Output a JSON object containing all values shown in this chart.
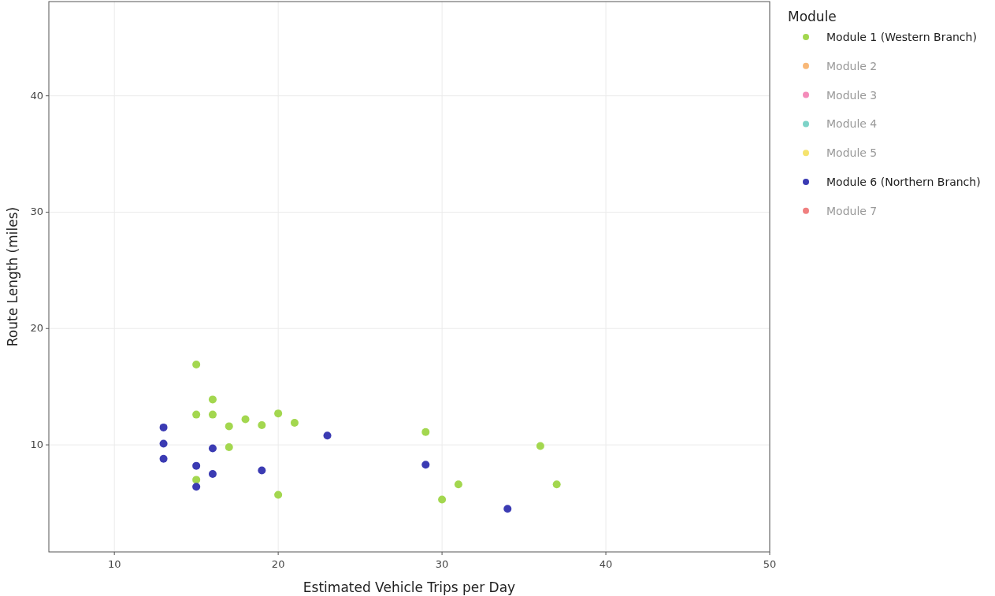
{
  "chart_data": {
    "type": "scatter",
    "xlabel": "Estimated Vehicle Trips per Day",
    "ylabel": "Route Length (miles)",
    "legend_title": "Module",
    "legend": "right",
    "grid": true,
    "marker": "circle",
    "xlim": [
      6,
      50
    ],
    "xticks": [
      10,
      20,
      30,
      40,
      50
    ],
    "ylim": [
      0.8,
      48.1
    ],
    "yticks": [
      10,
      20,
      30,
      40
    ],
    "series": [
      {
        "name": "Module 1 (Western Branch)",
        "color": "#a3d74f",
        "x": [
          15,
          16,
          15,
          16,
          17,
          18,
          19,
          20,
          21,
          17,
          15,
          20,
          29,
          30,
          31,
          36,
          37
        ],
        "values": [
          16.9,
          13.9,
          12.6,
          12.6,
          11.6,
          12.2,
          11.7,
          12.7,
          11.9,
          9.8,
          7.0,
          5.7,
          11.1,
          5.3,
          6.6,
          9.9,
          6.6
        ]
      },
      {
        "name": "Module 2",
        "color": "#f8b878"
      },
      {
        "name": "Module 3",
        "color": "#f48cba"
      },
      {
        "name": "Module 4",
        "color": "#7dd3c8"
      },
      {
        "name": "Module 5",
        "color": "#f5e36e"
      },
      {
        "name": "Module 6 (Northern Branch)",
        "color": "#3b3bb3",
        "x": [
          13,
          13,
          13,
          15,
          16,
          16,
          15,
          19,
          23,
          29,
          34
        ],
        "values": [
          11.5,
          10.1,
          8.8,
          8.2,
          9.7,
          7.5,
          6.4,
          7.8,
          10.8,
          8.3,
          4.5
        ]
      },
      {
        "name": "Module 7",
        "color": "#f08080"
      }
    ]
  }
}
